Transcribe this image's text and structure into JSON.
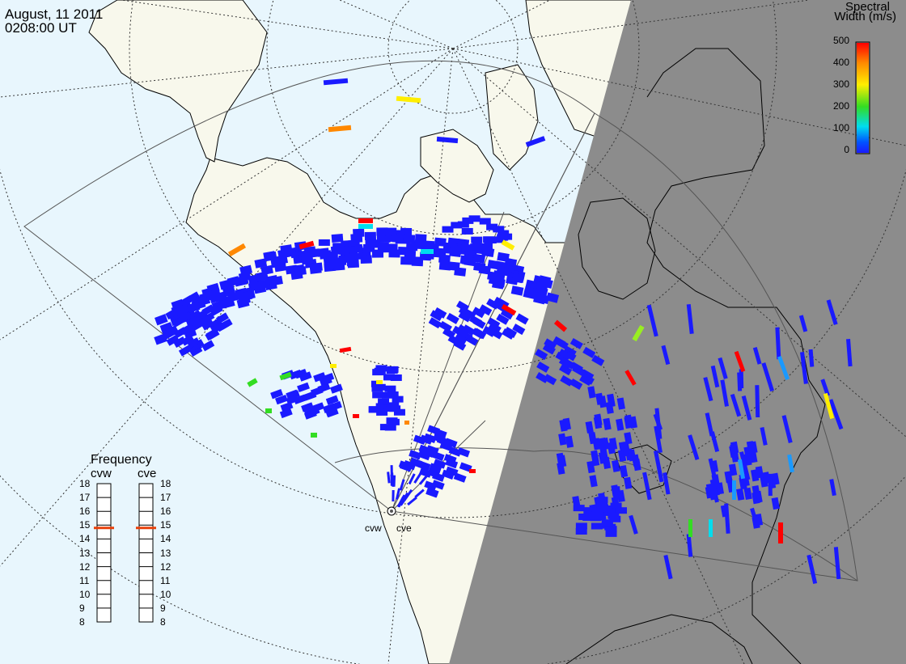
{
  "header": {
    "date": "August, 11 2011",
    "time": "0208:00 UT"
  },
  "colorbar": {
    "title_line1": "Spectral",
    "title_line2": "Width (m/s)",
    "ticks": [
      "500",
      "400",
      "300",
      "200",
      "100",
      "0"
    ],
    "colors": [
      "#ff0000",
      "#ff8800",
      "#ffee00",
      "#33dd22",
      "#00ddee",
      "#0055ff",
      "#1a1aff"
    ]
  },
  "frequency_panel": {
    "title": "Frequency",
    "channels": [
      {
        "name": "cvw",
        "freq_mhz": 14.8
      },
      {
        "name": "cve",
        "freq_mhz": 14.8
      }
    ],
    "ticks": [
      "18",
      "17",
      "16",
      "15",
      "14",
      "13",
      "12",
      "11",
      "10",
      "9",
      "8"
    ],
    "marker_color": "#e8400a"
  },
  "radars": [
    {
      "name": "cvw"
    },
    {
      "name": "cve"
    }
  ],
  "map_colors": {
    "ocean": "#e8f6fd",
    "land": "#f8f8ec",
    "night_overlay": "#8c8c8c",
    "scatter_default": "#1a1aff"
  }
}
